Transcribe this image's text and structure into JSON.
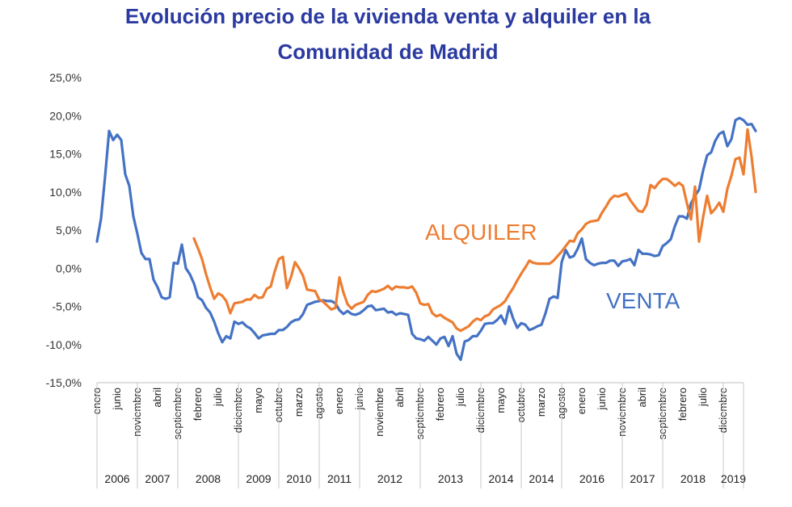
{
  "chart_data": {
    "type": "line",
    "title_line1": "Evolución precio de la vivienda venta y alquiler en la",
    "title_line2": "Comunidad de Madrid",
    "ylim": [
      -15,
      25
    ],
    "yticks": [
      {
        "value": 25,
        "label": "25,0%"
      },
      {
        "value": 20,
        "label": "20,0%"
      },
      {
        "value": 15,
        "label": "15,0%"
      },
      {
        "value": 10,
        "label": "10,0%"
      },
      {
        "value": 5,
        "label": "5,0%"
      },
      {
        "value": 0,
        "label": "0,0%"
      },
      {
        "value": -5,
        "label": "-5,0%"
      },
      {
        "value": -10,
        "label": "-10,0%"
      },
      {
        "value": -15,
        "label": "-15,0%"
      }
    ],
    "month_labels": [
      {
        "label": "enero",
        "idx": 0
      },
      {
        "label": "junio",
        "idx": 5
      },
      {
        "label": "noviembre",
        "idx": 10
      },
      {
        "label": "abril",
        "idx": 15
      },
      {
        "label": "septiembre",
        "idx": 20
      },
      {
        "label": "febrero",
        "idx": 25
      },
      {
        "label": "julio",
        "idx": 30
      },
      {
        "label": "diciembre",
        "idx": 35
      },
      {
        "label": "mayo",
        "idx": 40
      },
      {
        "label": "octubre",
        "idx": 45
      },
      {
        "label": "marzo",
        "idx": 50
      },
      {
        "label": "agosto",
        "idx": 55
      },
      {
        "label": "enero",
        "idx": 60
      },
      {
        "label": "junio",
        "idx": 65
      },
      {
        "label": "noviembre",
        "idx": 70
      },
      {
        "label": "abril",
        "idx": 75
      },
      {
        "label": "septiembre",
        "idx": 80
      },
      {
        "label": "febrero",
        "idx": 85
      },
      {
        "label": "julio",
        "idx": 90
      },
      {
        "label": "diciembre",
        "idx": 95
      },
      {
        "label": "mayo",
        "idx": 100
      },
      {
        "label": "octubre",
        "idx": 105
      },
      {
        "label": "marzo",
        "idx": 110
      },
      {
        "label": "agosto",
        "idx": 115
      },
      {
        "label": "enero",
        "idx": 120
      },
      {
        "label": "junio",
        "idx": 125
      },
      {
        "label": "noviembre",
        "idx": 130
      },
      {
        "label": "abril",
        "idx": 135
      },
      {
        "label": "septiembre",
        "idx": 140
      },
      {
        "label": "febrero",
        "idx": 145
      },
      {
        "label": "julio",
        "idx": 150
      },
      {
        "label": "diciembre",
        "idx": 155
      }
    ],
    "year_groups": [
      {
        "label": "2006",
        "start": 0,
        "end": 10
      },
      {
        "label": "2007",
        "start": 10,
        "end": 20
      },
      {
        "label": "2008",
        "start": 20,
        "end": 35
      },
      {
        "label": "2009",
        "start": 35,
        "end": 45
      },
      {
        "label": "2010",
        "start": 45,
        "end": 55
      },
      {
        "label": "2011",
        "start": 55,
        "end": 65
      },
      {
        "label": "2012",
        "start": 65,
        "end": 80
      },
      {
        "label": "2013",
        "start": 80,
        "end": 95
      },
      {
        "label": "2014",
        "start": 95,
        "end": 105
      },
      {
        "label": "2014",
        "start": 105,
        "end": 115
      },
      {
        "label": "2016",
        "start": 115,
        "end": 130
      },
      {
        "label": "2017",
        "start": 130,
        "end": 140
      },
      {
        "label": "2018",
        "start": 140,
        "end": 155
      },
      {
        "label": "2019",
        "start": 155,
        "end": 160
      }
    ],
    "series": [
      {
        "name": "VENTA",
        "color": "#4472c4",
        "start_idx": 0,
        "values": [
          3.5,
          6.5,
          12,
          18,
          16.8,
          17.5,
          16.8,
          12.3,
          10.8,
          6.8,
          4.5,
          2,
          1.2,
          1.2,
          -1.5,
          -2.5,
          -3.8,
          -4,
          -3.8,
          0.7,
          0.6,
          3.1,
          0,
          -0.8,
          -2,
          -3.8,
          -4.2,
          -5.2,
          -5.8,
          -7,
          -8.5,
          -9.7,
          -8.9,
          -9.2,
          -7,
          -7.3,
          -7.1,
          -7.6,
          -7.9,
          -8.5,
          -9.2,
          -8.8,
          -8.7,
          -8.6,
          -8.6,
          -8.1,
          -8.1,
          -7.7,
          -7.1,
          -6.8,
          -6.7,
          -6.0,
          -4.8,
          -4.6,
          -4.4,
          -4.3,
          -4.2,
          -4.3,
          -4.3,
          -4.6,
          -5.5,
          -6,
          -5.6,
          -6,
          -6.1,
          -5.9,
          -5.5,
          -5,
          -4.9,
          -5.5,
          -5.4,
          -5.3,
          -5.8,
          -5.7,
          -6.1,
          -5.9,
          -6.0,
          -6.1,
          -8.6,
          -9.2,
          -9.3,
          -9.5,
          -9,
          -9.5,
          -10,
          -9.2,
          -9,
          -10.2,
          -8.9,
          -11.2,
          -12,
          -9.6,
          -9.4,
          -8.9,
          -8.9,
          -8.2,
          -7.3,
          -7.2,
          -7.2,
          -6.8,
          -6.2,
          -7.3,
          -5,
          -6.6,
          -7.8,
          -7.2,
          -7.4,
          -8.1,
          -7.9,
          -7.6,
          -7.4,
          -5.9,
          -4.0,
          -3.7,
          -3.9,
          0.8,
          2.4,
          1.4,
          1.6,
          2.6,
          3.9,
          1.2,
          0.7,
          0.4,
          0.6,
          0.7,
          0.7,
          1.0,
          1.0,
          0.3,
          0.9,
          1.0,
          1.2,
          0.4,
          2.4,
          1.9,
          1.9,
          1.8,
          1.6,
          1.7,
          2.9,
          3.3,
          3.8,
          5.5,
          6.8,
          6.8,
          6.5,
          8.5,
          9.5,
          10.3,
          12.8,
          14.8,
          15.2,
          16.7,
          17.6,
          17.9,
          16,
          16.9,
          19.4,
          19.7,
          19.4,
          18.8,
          18.9,
          18
        ]
      },
      {
        "name": "ALQUILER",
        "color": "#ed7d31",
        "start_idx": 24,
        "values": [
          3.9,
          2.6,
          1.2,
          -0.8,
          -2.5,
          -4,
          -3.3,
          -3.6,
          -4.3,
          -5.9,
          -4.6,
          -4.5,
          -4.4,
          -4.1,
          -4.1,
          -3.5,
          -3.9,
          -3.8,
          -2.7,
          -2.4,
          -0.4,
          1.2,
          1.5,
          -2.6,
          -1.2,
          0.8,
          0,
          -1,
          -2.8,
          -2.9,
          -3,
          -4.1,
          -4.4,
          -4.9,
          -5.4,
          -5.2,
          -1.2,
          -3.2,
          -4.7,
          -5.3,
          -4.8,
          -4.6,
          -4.4,
          -3.5,
          -3,
          -3.1,
          -2.9,
          -2.7,
          -2.3,
          -2.8,
          -2.4,
          -2.5,
          -2.5,
          -2.6,
          -2.4,
          -3.2,
          -4.6,
          -4.8,
          -4.7,
          -5.9,
          -6.3,
          -6.1,
          -6.5,
          -6.8,
          -7.1,
          -7.9,
          -8.2,
          -7.9,
          -7.6,
          -7,
          -6.6,
          -6.8,
          -6.3,
          -6.1,
          -5.4,
          -5.1,
          -4.8,
          -4.3,
          -3.4,
          -2.6,
          -1.6,
          -0.7,
          0.1,
          1.0,
          0.7,
          0.6,
          0.6,
          0.6,
          0.6,
          1,
          1.6,
          2.2,
          2.9,
          3.6,
          3.5,
          4.6,
          5.1,
          5.8,
          6.1,
          6.2,
          6.3,
          7.3,
          8.1,
          9,
          9.5,
          9.4,
          9.6,
          9.8,
          8.9,
          8.2,
          7.5,
          7.4,
          8.3,
          10.9,
          10.5,
          11.2,
          11.7,
          11.7,
          11.3,
          10.8,
          11.2,
          10.8,
          8.5,
          6.4,
          10.7,
          3.5,
          6.7,
          9.5,
          7.2,
          7.8,
          8.6,
          7.4,
          10.4,
          12.1,
          14.3,
          14.5,
          12.3,
          18.2,
          14.6,
          10
        ]
      }
    ],
    "series_labels": [
      {
        "name": "ALQUILER",
        "text": "ALQUILER",
        "color": "#ed7d31"
      },
      {
        "name": "VENTA",
        "text": "VENTA",
        "color": "#4472c4"
      }
    ]
  }
}
